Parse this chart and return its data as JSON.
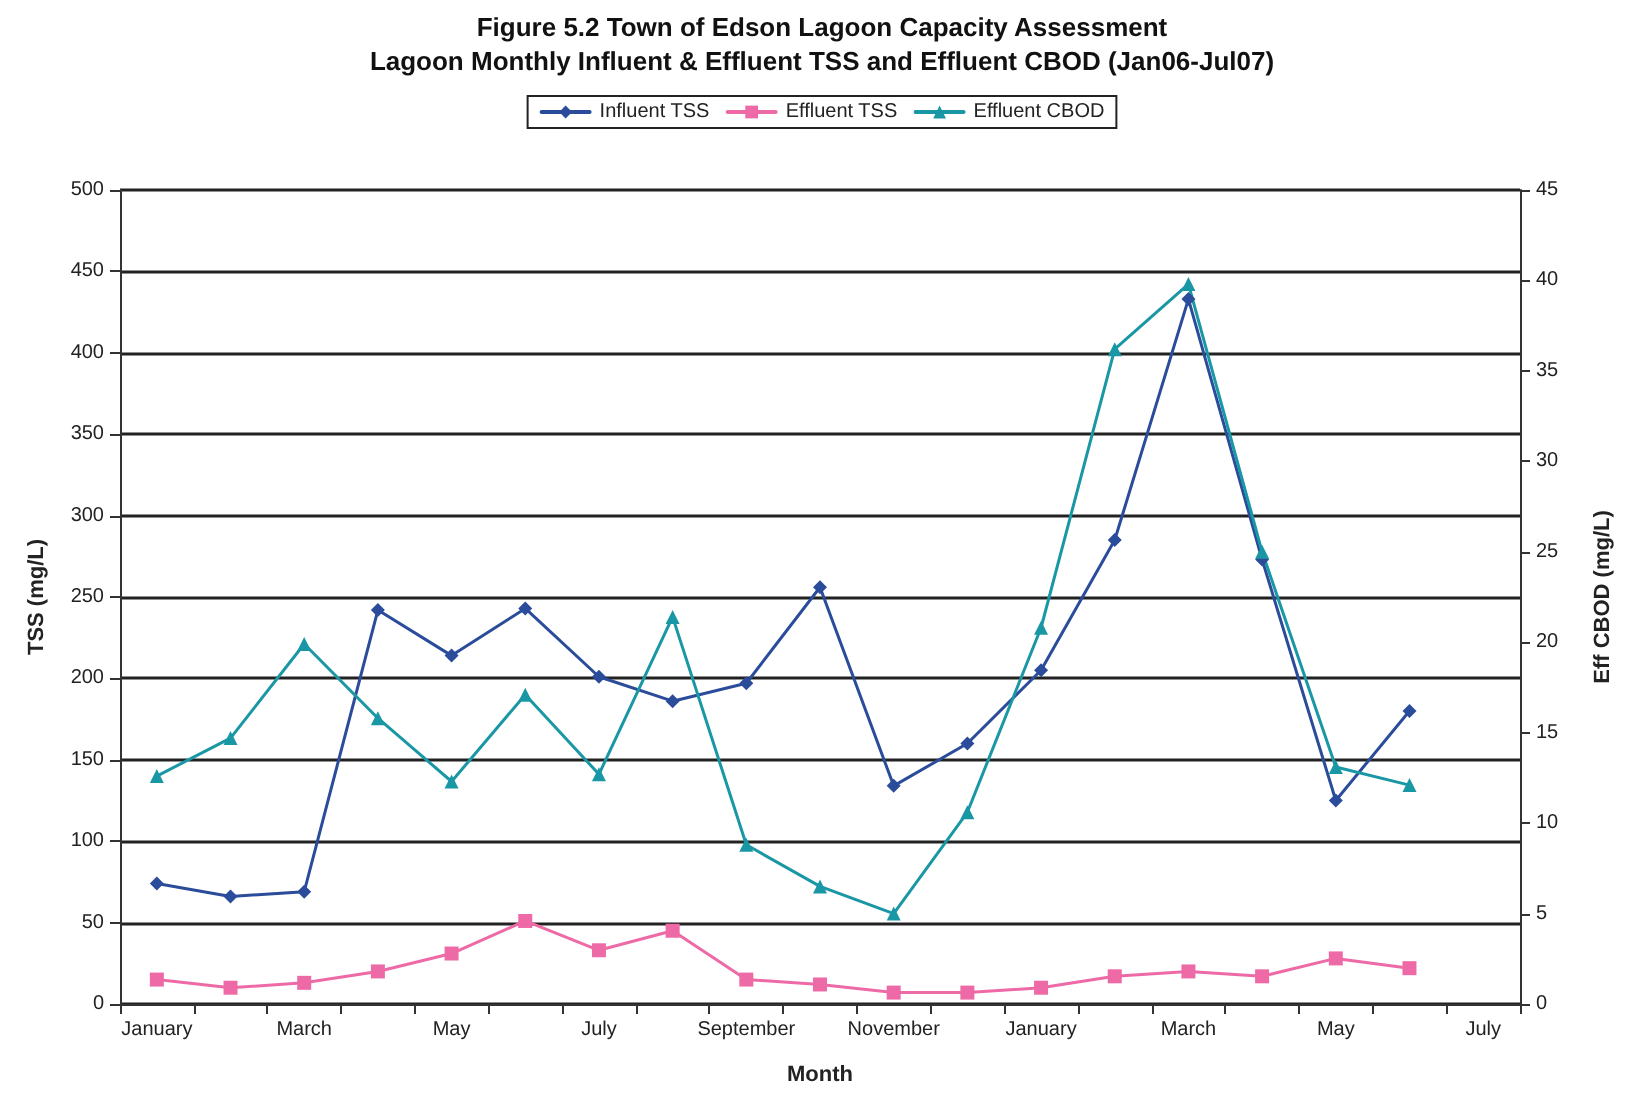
{
  "chart_data": {
    "type": "line",
    "title": "Figure 5.2 Town of Edson Lagoon Capacity Assessment",
    "subtitle": "Lagoon Monthly Influent & Effluent TSS and Effluent CBOD (Jan06-Jul07)",
    "xlabel": "Month",
    "ylabel": "TSS (mg/L)",
    "y2label": "Eff CBOD (mg/L)",
    "categories": [
      "January",
      null,
      "March",
      null,
      "May",
      null,
      "July",
      null,
      "September",
      null,
      "November",
      null,
      "January",
      null,
      "March",
      null,
      "May",
      null,
      "July"
    ],
    "series": [
      {
        "name": "Influent TSS",
        "color": "#2b4c9b",
        "marker": "diamond",
        "values": [
          74,
          66,
          69,
          242,
          214,
          243,
          201,
          186,
          197,
          256,
          134,
          160,
          205,
          285,
          433,
          273,
          125,
          180,
          null
        ]
      },
      {
        "name": "Effluent TSS",
        "color": "#ee6aa7",
        "marker": "square",
        "values": [
          15,
          10,
          13,
          20,
          31,
          51,
          33,
          45,
          15,
          12,
          7,
          7,
          10,
          17,
          20,
          17,
          28,
          22,
          null
        ]
      },
      {
        "name": "Effluent CBOD",
        "color": "#1a97a5",
        "marker": "triangle",
        "axis": "y2",
        "values": [
          12.6,
          14.7,
          19.9,
          15.8,
          12.3,
          17.1,
          12.7,
          21.4,
          8.8,
          6.5,
          5.0,
          10.6,
          20.8,
          36.2,
          39.8,
          25.0,
          13.1,
          12.1,
          null
        ]
      }
    ],
    "ylim": [
      0,
      500
    ],
    "yticks": [
      0,
      50,
      100,
      150,
      200,
      250,
      300,
      350,
      400,
      450,
      500
    ],
    "y2lim": [
      0,
      45
    ],
    "y2ticks": [
      0,
      5,
      10,
      15,
      20,
      25,
      30,
      35,
      40,
      45
    ],
    "grid": "y",
    "legend": "top",
    "line_style": "solid"
  }
}
